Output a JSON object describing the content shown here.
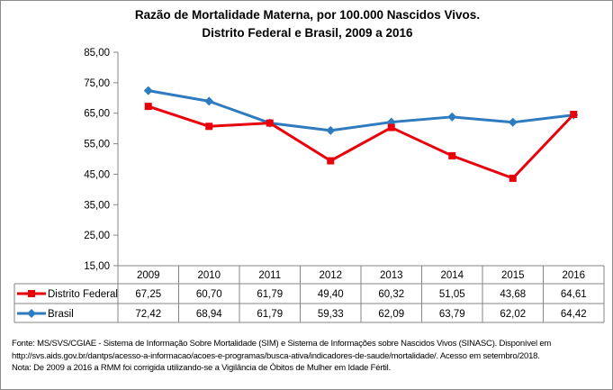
{
  "chart_data": {
    "type": "line",
    "title_line1": "Razão de Mortalidade Materna, por 100.000 Nascidos Vivos.",
    "title_line2": "Distrito Federal e Brasil, 2009 a 2016",
    "categories": [
      "2009",
      "2010",
      "2011",
      "2012",
      "2013",
      "2014",
      "2015",
      "2016"
    ],
    "ylim": [
      15,
      85
    ],
    "yticks": [
      "15,00",
      "25,00",
      "35,00",
      "45,00",
      "55,00",
      "65,00",
      "75,00",
      "85,00"
    ],
    "grid": false,
    "legend": "data-table",
    "series": [
      {
        "name": "Distrito Federal",
        "color": "#e8000b",
        "marker": "square",
        "values": [
          67.25,
          60.7,
          61.79,
          49.4,
          60.32,
          51.05,
          43.68,
          64.61
        ],
        "labels": [
          "67,25",
          "60,70",
          "61,79",
          "49,40",
          "60,32",
          "51,05",
          "43,68",
          "64,61"
        ]
      },
      {
        "name": "Brasil",
        "color": "#2e7bbf",
        "marker": "diamond",
        "values": [
          72.42,
          68.94,
          61.79,
          59.33,
          62.09,
          63.79,
          62.02,
          64.42
        ],
        "labels": [
          "72,42",
          "68,94",
          "61,79",
          "59,33",
          "62,09",
          "63,79",
          "62,02",
          "64,42"
        ]
      }
    ]
  },
  "notes": {
    "line1": "Fonte: MS/SVS/CGIAE - Sistema de Informação Sobre Mortalidade (SIM) e Sistema de Informações sobre Nascidos Vivos (SINASC). Disponível em",
    "line2": "http://svs.aids.gov.br/dantps/acesso-a-informacao/acoes-e-programas/busca-ativa/indicadores-de-saude/mortalidade/. Acesso em setembro/2018.",
    "line3": "Nota: De 2009 a 2016 a RMM foi corrigida utilizando-se a Vigilância de Óbitos de Mulher em Idade Fértil."
  }
}
